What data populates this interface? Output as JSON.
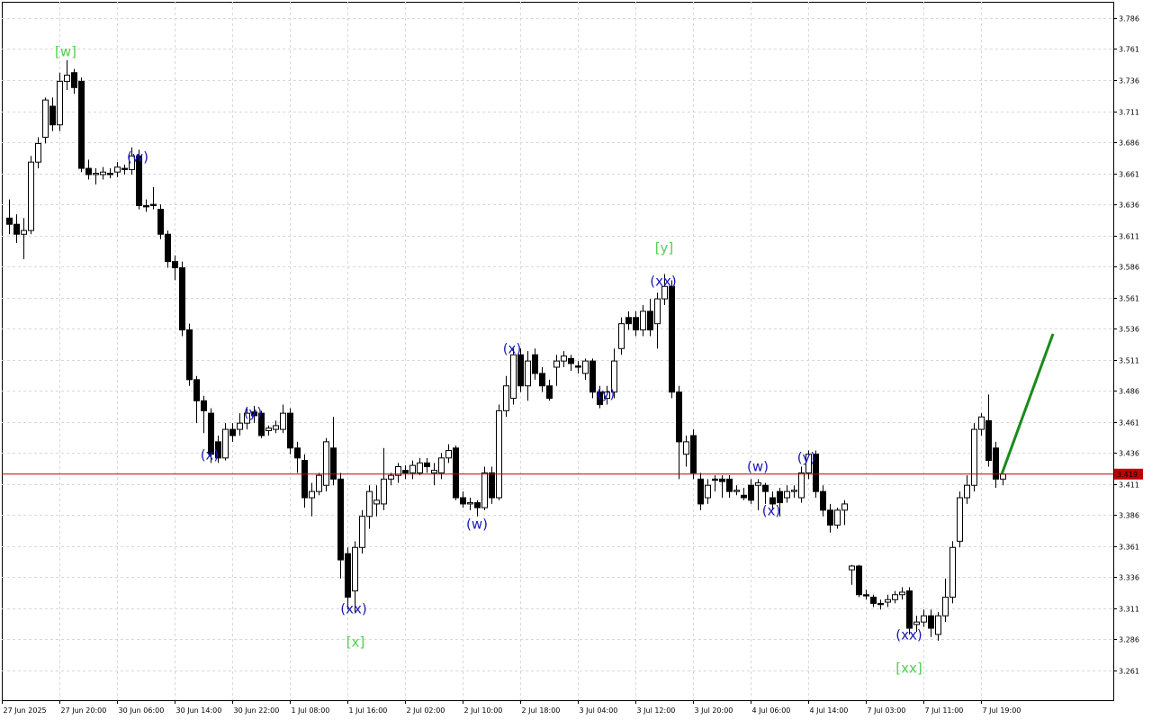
{
  "chart_data": {
    "type": "candlestick",
    "ylim": [
      3.2371,
      3.799
    ],
    "yticks": [
      3.786,
      3.761,
      3.736,
      3.711,
      3.686,
      3.661,
      3.636,
      3.611,
      3.586,
      3.561,
      3.536,
      3.511,
      3.486,
      3.461,
      3.436,
      3.411,
      3.386,
      3.361,
      3.336,
      3.311,
      3.286,
      3.261
    ],
    "xlim": [
      -1,
      153.375
    ],
    "xticks": [
      {
        "value": -1,
        "label": "27 Jun 2025"
      },
      {
        "value": 7,
        "label": "27 Jun 20:00"
      },
      {
        "value": 15,
        "label": "30 Jun 06:00"
      },
      {
        "value": 23,
        "label": "30 Jun 14:00"
      },
      {
        "value": 31,
        "label": "30 Jun 22:00"
      },
      {
        "value": 39,
        "label": "1 Jul 08:00"
      },
      {
        "value": 47,
        "label": "1 Jul 16:00"
      },
      {
        "value": 55,
        "label": "2 Jul 02:00"
      },
      {
        "value": 63,
        "label": "2 Jul 10:00"
      },
      {
        "value": 71,
        "label": "2 Jul 18:00"
      },
      {
        "value": 79,
        "label": "3 Jul 04:00"
      },
      {
        "value": 87,
        "label": "3 Jul 12:00"
      },
      {
        "value": 95,
        "label": "3 Jul 20:00"
      },
      {
        "value": 103,
        "label": "4 Jul 06:00"
      },
      {
        "value": 111,
        "label": "4 Jul 14:00"
      },
      {
        "value": 119,
        "label": "7 Jul 03:00"
      },
      {
        "value": 127,
        "label": "7 Jul 11:00"
      },
      {
        "value": 135,
        "label": "7 Jul 19:00"
      }
    ],
    "grid": true,
    "up_color": "#ffffff",
    "down_color": "#000000",
    "last_price": 3.419,
    "last_price_color": "#c00000",
    "ohlc": [
      [
        3.625,
        3.64,
        3.612,
        3.62
      ],
      [
        3.62,
        3.628,
        3.605,
        3.612
      ],
      [
        3.612,
        3.625,
        3.592,
        3.615
      ],
      [
        3.615,
        3.675,
        3.612,
        3.67
      ],
      [
        3.67,
        3.69,
        3.665,
        3.685
      ],
      [
        3.69,
        3.722,
        3.685,
        3.72
      ],
      [
        3.715,
        3.722,
        3.695,
        3.7
      ],
      [
        3.7,
        3.742,
        3.695,
        3.735
      ],
      [
        3.735,
        3.752,
        3.728,
        3.74
      ],
      [
        3.742,
        3.745,
        3.725,
        3.73
      ],
      [
        3.735,
        3.738,
        3.662,
        3.665
      ],
      [
        3.665,
        3.672,
        3.656,
        3.66
      ],
      [
        3.66,
        3.665,
        3.652,
        3.661
      ],
      [
        3.66,
        3.666,
        3.656,
        3.662
      ],
      [
        3.661,
        3.665,
        3.657,
        3.66
      ],
      [
        3.662,
        3.67,
        3.658,
        3.666
      ],
      [
        3.665,
        3.668,
        3.66,
        3.664
      ],
      [
        3.664,
        3.682,
        3.66,
        3.675
      ],
      [
        3.675,
        3.68,
        3.632,
        3.635
      ],
      [
        3.635,
        3.64,
        3.63,
        3.634
      ],
      [
        3.636,
        3.65,
        3.632,
        3.635
      ],
      [
        3.632,
        3.636,
        3.608,
        3.612
      ],
      [
        3.612,
        3.615,
        3.585,
        3.59
      ],
      [
        3.59,
        3.595,
        3.575,
        3.585
      ],
      [
        3.585,
        3.59,
        3.53,
        3.535
      ],
      [
        3.535,
        3.54,
        3.49,
        3.495
      ],
      [
        3.495,
        3.498,
        3.46,
        3.478
      ],
      [
        3.478,
        3.482,
        3.452,
        3.47
      ],
      [
        3.468,
        3.472,
        3.428,
        3.435
      ],
      [
        3.445,
        3.45,
        3.428,
        3.432
      ],
      [
        3.432,
        3.46,
        3.43,
        3.455
      ],
      [
        3.455,
        3.46,
        3.445,
        3.45
      ],
      [
        3.455,
        3.468,
        3.45,
        3.46
      ],
      [
        3.46,
        3.472,
        3.455,
        3.468
      ],
      [
        3.469,
        3.474,
        3.46,
        3.466
      ],
      [
        3.468,
        3.47,
        3.448,
        3.45
      ],
      [
        3.454,
        3.458,
        3.45,
        3.456
      ],
      [
        3.455,
        3.462,
        3.452,
        3.458
      ],
      [
        3.455,
        3.475,
        3.452,
        3.468
      ],
      [
        3.468,
        3.472,
        3.435,
        3.44
      ],
      [
        3.44,
        3.445,
        3.42,
        3.432
      ],
      [
        3.43,
        3.435,
        3.392,
        3.4
      ],
      [
        3.4,
        3.412,
        3.385,
        3.405
      ],
      [
        3.405,
        3.42,
        3.402,
        3.418
      ],
      [
        3.41,
        3.448,
        3.405,
        3.445
      ],
      [
        3.44,
        3.465,
        3.41,
        3.415
      ],
      [
        3.415,
        3.42,
        3.335,
        3.35
      ],
      [
        3.355,
        3.36,
        3.31,
        3.32
      ],
      [
        3.325,
        3.365,
        3.308,
        3.36
      ],
      [
        3.36,
        3.39,
        3.355,
        3.385
      ],
      [
        3.385,
        3.41,
        3.375,
        3.405
      ],
      [
        3.395,
        3.41,
        3.385,
        3.398
      ],
      [
        3.395,
        3.44,
        3.39,
        3.415
      ],
      [
        3.415,
        3.42,
        3.41,
        3.418
      ],
      [
        3.418,
        3.428,
        3.412,
        3.425
      ],
      [
        3.422,
        3.426,
        3.415,
        3.42
      ],
      [
        3.42,
        3.43,
        3.415,
        3.426
      ],
      [
        3.42,
        3.432,
        3.418,
        3.428
      ],
      [
        3.428,
        3.432,
        3.42,
        3.425
      ],
      [
        3.42,
        3.428,
        3.41,
        3.422
      ],
      [
        3.42,
        3.436,
        3.415,
        3.432
      ],
      [
        3.432,
        3.443,
        3.428,
        3.438
      ],
      [
        3.44,
        3.442,
        3.398,
        3.4
      ],
      [
        3.4,
        3.405,
        3.392,
        3.395
      ],
      [
        3.395,
        3.4,
        3.39,
        3.396
      ],
      [
        3.396,
        3.398,
        3.385,
        3.392
      ],
      [
        3.392,
        3.425,
        3.39,
        3.42
      ],
      [
        3.42,
        3.425,
        3.395,
        3.4
      ],
      [
        3.4,
        3.475,
        3.398,
        3.47
      ],
      [
        3.47,
        3.498,
        3.465,
        3.49
      ],
      [
        3.48,
        3.52,
        3.475,
        3.515
      ],
      [
        3.515,
        3.52,
        3.485,
        3.49
      ],
      [
        3.49,
        3.518,
        3.478,
        3.51
      ],
      [
        3.515,
        3.52,
        3.495,
        3.5
      ],
      [
        3.5,
        3.505,
        3.485,
        3.49
      ],
      [
        3.49,
        3.495,
        3.478,
        3.48
      ],
      [
        3.505,
        3.515,
        3.49,
        3.51
      ],
      [
        3.51,
        3.518,
        3.505,
        3.514
      ],
      [
        3.512,
        3.515,
        3.502,
        3.508
      ],
      [
        3.506,
        3.51,
        3.5,
        3.505
      ],
      [
        3.5,
        3.512,
        3.495,
        3.51
      ],
      [
        3.51,
        3.512,
        3.48,
        3.485
      ],
      [
        3.485,
        3.49,
        3.472,
        3.475
      ],
      [
        3.48,
        3.49,
        3.475,
        3.485
      ],
      [
        3.485,
        3.52,
        3.48,
        3.51
      ],
      [
        3.52,
        3.545,
        3.515,
        3.54
      ],
      [
        3.545,
        3.55,
        3.535,
        3.54
      ],
      [
        3.545,
        3.55,
        3.53,
        3.535
      ],
      [
        3.535,
        3.555,
        3.53,
        3.55
      ],
      [
        3.55,
        3.56,
        3.53,
        3.535
      ],
      [
        3.54,
        3.565,
        3.52,
        3.56
      ],
      [
        3.56,
        3.58,
        3.555,
        3.57
      ],
      [
        3.57,
        3.575,
        3.48,
        3.485
      ],
      [
        3.485,
        3.49,
        3.415,
        3.445
      ],
      [
        3.435,
        3.45,
        3.425,
        3.445
      ],
      [
        3.45,
        3.455,
        3.415,
        3.42
      ],
      [
        3.415,
        3.42,
        3.39,
        3.395
      ],
      [
        3.4,
        3.415,
        3.395,
        3.41
      ],
      [
        3.415,
        3.418,
        3.405,
        3.414
      ],
      [
        3.415,
        3.418,
        3.4,
        3.413
      ],
      [
        3.415,
        3.418,
        3.4,
        3.405
      ],
      [
        3.405,
        3.41,
        3.402,
        3.406
      ],
      [
        3.402,
        3.408,
        3.398,
        3.4
      ],
      [
        3.41,
        3.415,
        3.395,
        3.398
      ],
      [
        3.41,
        3.415,
        3.39,
        3.412
      ],
      [
        3.41,
        3.412,
        3.395,
        3.405
      ],
      [
        3.4,
        3.405,
        3.39,
        3.395
      ],
      [
        3.405,
        3.408,
        3.385,
        3.396
      ],
      [
        3.4,
        3.41,
        3.396,
        3.405
      ],
      [
        3.405,
        3.41,
        3.4,
        3.406
      ],
      [
        3.4,
        3.425,
        3.396,
        3.42
      ],
      [
        3.42,
        3.438,
        3.415,
        3.435
      ],
      [
        3.435,
        3.438,
        3.4,
        3.405
      ],
      [
        3.405,
        3.41,
        3.385,
        3.39
      ],
      [
        3.39,
        3.395,
        3.372,
        3.378
      ],
      [
        3.378,
        3.392,
        3.375,
        3.39
      ],
      [
        3.39,
        3.398,
        3.378,
        3.395
      ],
      [
        3.342,
        3.346,
        3.33,
        3.345
      ],
      [
        3.345,
        3.346,
        3.32,
        3.322
      ],
      [
        3.322,
        3.326,
        3.318,
        3.321
      ],
      [
        3.32,
        3.322,
        3.312,
        3.315
      ],
      [
        3.315,
        3.318,
        3.31,
        3.314
      ],
      [
        3.316,
        3.322,
        3.312,
        3.318
      ],
      [
        3.318,
        3.325,
        3.315,
        3.322
      ],
      [
        3.322,
        3.328,
        3.318,
        3.324
      ],
      [
        3.325,
        3.328,
        3.29,
        3.295
      ],
      [
        3.298,
        3.305,
        3.292,
        3.3
      ],
      [
        3.3,
        3.31,
        3.296,
        3.305
      ],
      [
        3.305,
        3.31,
        3.288,
        3.295
      ],
      [
        3.29,
        3.308,
        3.285,
        3.305
      ],
      [
        3.305,
        3.335,
        3.3,
        3.32
      ],
      [
        3.32,
        3.365,
        3.315,
        3.36
      ],
      [
        3.365,
        3.405,
        3.36,
        3.4
      ],
      [
        3.4,
        3.418,
        3.395,
        3.41
      ],
      [
        3.41,
        3.46,
        3.405,
        3.455
      ],
      [
        3.455,
        3.468,
        3.45,
        3.465
      ],
      [
        3.462,
        3.483,
        3.425,
        3.43
      ],
      [
        3.44,
        3.445,
        3.408,
        3.415
      ],
      [
        3.415,
        3.422,
        3.41,
        3.419
      ]
    ],
    "annotations": [
      {
        "text": "[w]",
        "color": "#4fcf4f"
      },
      {
        "text": "(w)",
        "color": "#1a1ab8"
      },
      {
        "text": "(x)",
        "color": "#1a1ab8"
      },
      {
        "text": "(y)",
        "color": "#1a1ab8"
      },
      {
        "text": "(xx)",
        "color": "#1a1ab8"
      },
      {
        "text": "[x]",
        "color": "#4fcf4f"
      },
      {
        "text": "(w)",
        "color": "#1a1ab8"
      },
      {
        "text": "(x)",
        "color": "#1a1ab8"
      },
      {
        "text": "(y)",
        "color": "#1a1ab8"
      },
      {
        "text": "[y]",
        "color": "#4fcf4f"
      },
      {
        "text": "(xx)",
        "color": "#1a1ab8"
      },
      {
        "text": "(w)",
        "color": "#1a1ab8"
      },
      {
        "text": "(x)",
        "color": "#1a1ab8"
      },
      {
        "text": "(y)",
        "color": "#1a1ab8"
      },
      {
        "text": "(xx)",
        "color": "#1a1ab8"
      },
      {
        "text": "[xx]",
        "color": "#4fcf4f"
      }
    ]
  }
}
